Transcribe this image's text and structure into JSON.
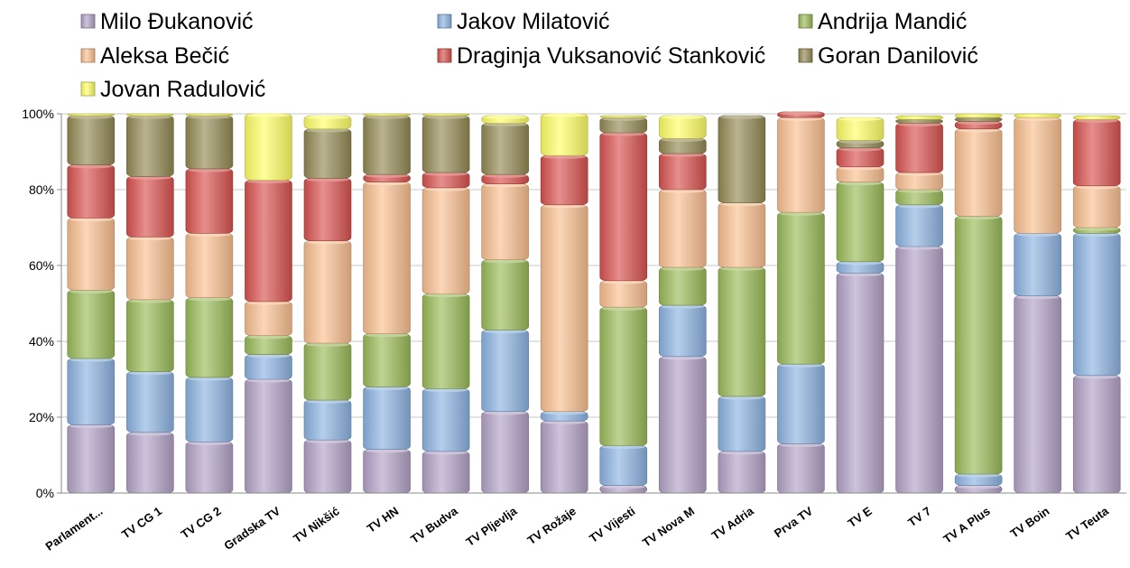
{
  "chart_data": {
    "type": "bar",
    "stacked": "percent",
    "categories": [
      "Parlament...",
      "TV CG 1",
      "TV CG 2",
      "Gradska TV",
      "TV Nikšić",
      "TV HN",
      "TV Budva",
      "TV Pljevlja",
      "TV Rožaje",
      "TV Vijesti",
      "TV Nova M",
      "TV Adria",
      "Prva TV",
      "TV E",
      "TV 7",
      "TV A Plus",
      "TV Boin",
      "TV Teuta"
    ],
    "y_ticks": [
      "0%",
      "20%",
      "40%",
      "60%",
      "80%",
      "100%"
    ],
    "ylim": [
      0,
      100
    ],
    "grid": true,
    "legend_position": "top",
    "series": [
      {
        "name": "Milo Đukanović",
        "color": "#b3a2c7",
        "values": [
          18,
          16,
          13.5,
          30,
          14,
          11.5,
          11,
          21.5,
          19,
          2,
          36,
          11,
          13,
          58,
          65,
          2,
          52,
          31
        ]
      },
      {
        "name": "Jakov Milatović",
        "color": "#8db3e2",
        "values": [
          17.5,
          16,
          17,
          6.5,
          10.5,
          16.5,
          16.5,
          21.5,
          2.5,
          10.5,
          13.5,
          14.5,
          21,
          3,
          11,
          3,
          16.5,
          37.5
        ]
      },
      {
        "name": "Andrija Mandić",
        "color": "#9bbb59",
        "values": [
          18,
          19,
          21,
          5,
          15,
          14,
          25,
          18.5,
          0,
          36.5,
          10,
          34,
          40,
          21,
          4,
          68,
          0,
          1.5
        ]
      },
      {
        "name": "Aleksa Bečić",
        "color": "#fac090",
        "values": [
          19,
          16.5,
          17,
          9,
          27,
          40,
          28,
          20,
          54.5,
          7,
          20.5,
          17,
          25,
          4,
          4.5,
          23,
          30.5,
          11
        ]
      },
      {
        "name": "Draginja Vuksanović Stanković",
        "color": "#d9534f",
        "values": [
          14,
          16,
          17,
          32,
          16.5,
          2,
          4,
          2.5,
          13,
          39,
          9.5,
          0,
          1.5,
          5,
          13,
          2,
          0,
          17.5
        ]
      },
      {
        "name": "Goran Danilović",
        "color": "#948a54",
        "values": [
          13,
          16,
          14,
          0,
          13,
          15.5,
          15,
          13.5,
          0,
          4,
          4,
          23,
          0,
          2,
          1,
          1,
          0,
          0
        ]
      },
      {
        "name": "Jovan Radulović",
        "color": "#ffff66",
        "values": [
          0.5,
          0.5,
          0.5,
          17.5,
          3.5,
          0.5,
          0.5,
          2,
          11,
          0.5,
          6,
          0,
          0,
          6,
          1,
          1,
          1,
          1
        ]
      }
    ]
  }
}
